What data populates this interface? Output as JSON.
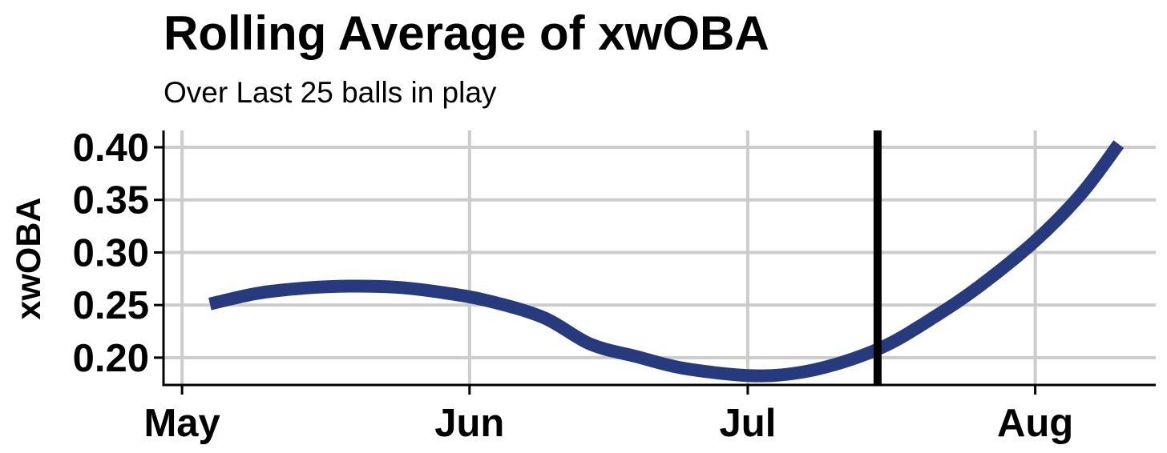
{
  "chart_data": {
    "type": "line",
    "title": "Rolling Average of xwOBA",
    "subtitle": "Over Last 25 balls in play",
    "xlabel": "",
    "ylabel": "xwOBA",
    "x_ticks": [
      {
        "date": "2023-05-01",
        "label": "May"
      },
      {
        "date": "2023-06-01",
        "label": "Jun"
      },
      {
        "date": "2023-07-01",
        "label": "Jul"
      },
      {
        "date": "2023-08-01",
        "label": "Aug"
      }
    ],
    "y_ticks": [
      0.2,
      0.25,
      0.3,
      0.35,
      0.4
    ],
    "y_tick_labels": [
      "0.20",
      "0.25",
      "0.30",
      "0.35",
      "0.40"
    ],
    "xlim": [
      "2023-04-29",
      "2023-08-14"
    ],
    "ylim": [
      0.174,
      0.416
    ],
    "grid": true,
    "series": [
      {
        "color": "#283A7E",
        "points": [
          {
            "x": "2023-05-04",
            "y": 0.251
          },
          {
            "x": "2023-05-09",
            "y": 0.261
          },
          {
            "x": "2023-05-14",
            "y": 0.266
          },
          {
            "x": "2023-05-19",
            "y": 0.268
          },
          {
            "x": "2023-05-24",
            "y": 0.267
          },
          {
            "x": "2023-05-29",
            "y": 0.262
          },
          {
            "x": "2023-06-03",
            "y": 0.254
          },
          {
            "x": "2023-06-09",
            "y": 0.238
          },
          {
            "x": "2023-06-14",
            "y": 0.213
          },
          {
            "x": "2023-06-19",
            "y": 0.201
          },
          {
            "x": "2023-06-24",
            "y": 0.19
          },
          {
            "x": "2023-07-01",
            "y": 0.183
          },
          {
            "x": "2023-07-06",
            "y": 0.185
          },
          {
            "x": "2023-07-11",
            "y": 0.195
          },
          {
            "x": "2023-07-16",
            "y": 0.212
          },
          {
            "x": "2023-07-21",
            "y": 0.238
          },
          {
            "x": "2023-07-26",
            "y": 0.268
          },
          {
            "x": "2023-08-01",
            "y": 0.311
          },
          {
            "x": "2023-08-06",
            "y": 0.356
          },
          {
            "x": "2023-08-10",
            "y": 0.403
          }
        ]
      }
    ],
    "vline": {
      "x": "2023-07-15",
      "color": "#000000"
    },
    "colors": {
      "line": "#283A7E",
      "grid": "#CCCCCC",
      "axis": "#000000"
    }
  }
}
